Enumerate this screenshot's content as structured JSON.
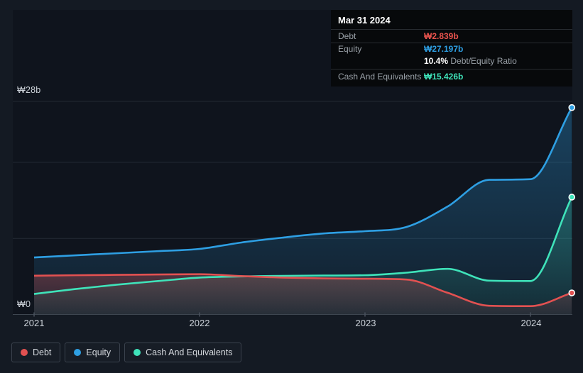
{
  "tooltip": {
    "date": "Mar 31 2024",
    "debt_label": "Debt",
    "debt_value": "₩2.839b",
    "equity_label": "Equity",
    "equity_value": "₩27.197b",
    "ratio_value": "10.4%",
    "ratio_label": "Debt/Equity Ratio",
    "cash_label": "Cash And Equivalents",
    "cash_value": "₩15.426b"
  },
  "legend": {
    "items": [
      {
        "label": "Debt",
        "color": "#e25151"
      },
      {
        "label": "Equity",
        "color": "#2e9fe3"
      },
      {
        "label": "Cash And Equivalents",
        "color": "#3fe3ba"
      }
    ]
  },
  "axes": {
    "y_top_label": "₩28b",
    "y_zero_label": "₩0",
    "x_tick_labels": [
      "2021",
      "2022",
      "2023",
      "2024"
    ]
  },
  "chart_data": {
    "type": "area",
    "title": "Debt to Equity History",
    "x_unit": "year",
    "x_range": [
      2021,
      2024.25
    ],
    "ylim": [
      0,
      28
    ],
    "y_gridline_values": [
      28,
      20,
      10
    ],
    "x_tick_years": [
      2021,
      2022,
      2023,
      2024
    ],
    "x": [
      2021,
      2021.25,
      2021.5,
      2021.75,
      2022,
      2022.25,
      2022.5,
      2022.75,
      2023,
      2023.25,
      2023.5,
      2023.75,
      2024,
      2024.25
    ],
    "series": [
      {
        "name": "Equity",
        "color": "#2e9fe3",
        "unit": "₩b",
        "values": [
          7.5,
          7.78,
          8.05,
          8.33,
          8.62,
          9.45,
          10.1,
          10.65,
          10.95,
          11.5,
          14.2,
          17.7,
          17.78,
          27.197
        ]
      },
      {
        "name": "Cash And Equivalents",
        "color": "#3fe3ba",
        "unit": "₩b",
        "values": [
          2.7,
          3.35,
          3.92,
          4.4,
          4.85,
          5.0,
          5.08,
          5.12,
          5.16,
          5.5,
          6.0,
          4.45,
          4.4,
          15.426
        ]
      },
      {
        "name": "Debt",
        "color": "#e25151",
        "unit": "₩b",
        "values": [
          5.1,
          5.16,
          5.21,
          5.26,
          5.3,
          5.05,
          4.85,
          4.75,
          4.7,
          4.6,
          2.85,
          1.15,
          1.1,
          2.839
        ]
      }
    ],
    "last_point_date": "Mar 31 2024",
    "last_values": {
      "Debt": 2.839,
      "Equity": 27.197,
      "Cash And Equivalents": 15.426,
      "debt_equity_ratio_pct": 10.4
    }
  },
  "style": {
    "grid_color": "#232a34",
    "axis_color": "#3e4650",
    "plot_bg": "#0f141d",
    "page_bg": "#141a23"
  }
}
